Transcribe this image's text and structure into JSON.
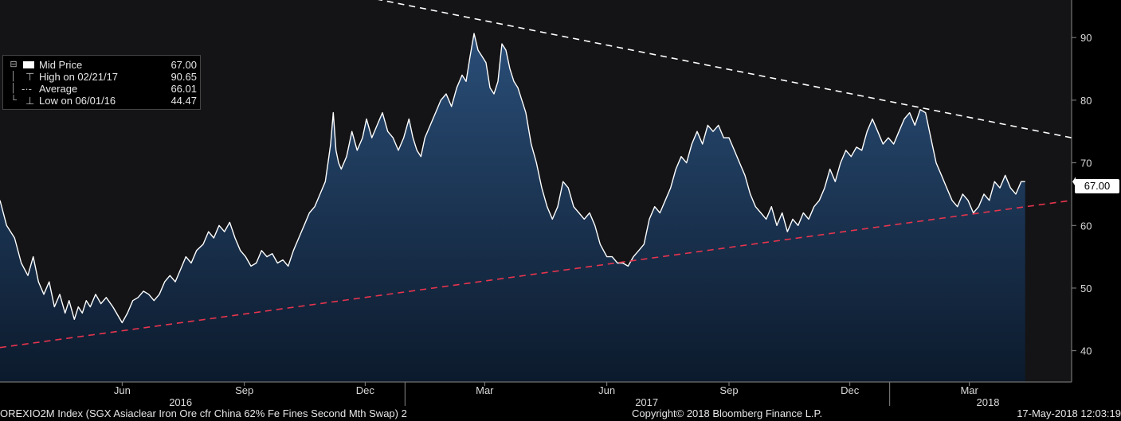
{
  "chart_data": {
    "type": "area",
    "title": "OREXIO2M Index (SGX Asiaclear Iron Ore cfr China 62% Fe Fines Second Mth Swap) 2",
    "x_range": [
      "2016-03-01",
      "2018-05-17"
    ],
    "ylim": [
      35,
      96
    ],
    "y_ticks": [
      40,
      50,
      60,
      70,
      80,
      90
    ],
    "x_tick_labels": [
      {
        "label": "Jun",
        "date": "2016-06-01"
      },
      {
        "label": "Sep",
        "date": "2016-09-01"
      },
      {
        "label": "Dec",
        "date": "2016-12-01"
      },
      {
        "label": "Mar",
        "date": "2017-03-01"
      },
      {
        "label": "Jun",
        "date": "2017-06-01"
      },
      {
        "label": "Sep",
        "date": "2017-09-01"
      },
      {
        "label": "Dec",
        "date": "2017-12-01"
      },
      {
        "label": "Mar",
        "date": "2018-03-01"
      }
    ],
    "year_labels": [
      {
        "label": "2016",
        "date": "2016-07-15"
      },
      {
        "label": "2017",
        "date": "2017-07-01"
      },
      {
        "label": "2018",
        "date": "2018-03-15"
      }
    ],
    "year_dividers": [
      "2016-12-31",
      "2017-12-31"
    ],
    "series": [
      {
        "name": "Mid Price",
        "color": "#ffffff",
        "fill": "#1c3a5e",
        "points": [
          [
            "2016-03-01",
            64
          ],
          [
            "2016-03-06",
            60
          ],
          [
            "2016-03-12",
            58
          ],
          [
            "2016-03-17",
            54
          ],
          [
            "2016-03-22",
            52
          ],
          [
            "2016-03-26",
            55
          ],
          [
            "2016-03-30",
            51
          ],
          [
            "2016-04-03",
            49
          ],
          [
            "2016-04-07",
            51
          ],
          [
            "2016-04-11",
            47
          ],
          [
            "2016-04-15",
            49
          ],
          [
            "2016-04-19",
            46
          ],
          [
            "2016-04-22",
            48
          ],
          [
            "2016-04-26",
            45
          ],
          [
            "2016-04-29",
            47
          ],
          [
            "2016-05-02",
            46
          ],
          [
            "2016-05-05",
            48
          ],
          [
            "2016-05-08",
            47
          ],
          [
            "2016-05-12",
            49
          ],
          [
            "2016-05-16",
            47.5
          ],
          [
            "2016-05-20",
            48.5
          ],
          [
            "2016-05-25",
            47
          ],
          [
            "2016-06-01",
            44.47
          ],
          [
            "2016-06-05",
            46
          ],
          [
            "2016-06-09",
            48
          ],
          [
            "2016-06-13",
            48.5
          ],
          [
            "2016-06-17",
            49.5
          ],
          [
            "2016-06-21",
            49
          ],
          [
            "2016-06-25",
            48
          ],
          [
            "2016-06-29",
            49
          ],
          [
            "2016-07-03",
            51
          ],
          [
            "2016-07-07",
            52
          ],
          [
            "2016-07-11",
            51
          ],
          [
            "2016-07-15",
            53
          ],
          [
            "2016-07-19",
            55
          ],
          [
            "2016-07-23",
            54
          ],
          [
            "2016-07-27",
            56
          ],
          [
            "2016-08-01",
            57
          ],
          [
            "2016-08-05",
            59
          ],
          [
            "2016-08-09",
            58
          ],
          [
            "2016-08-13",
            60
          ],
          [
            "2016-08-17",
            59
          ],
          [
            "2016-08-21",
            60.5
          ],
          [
            "2016-08-25",
            58
          ],
          [
            "2016-08-29",
            56
          ],
          [
            "2016-09-02",
            55
          ],
          [
            "2016-09-06",
            53.5
          ],
          [
            "2016-09-10",
            54
          ],
          [
            "2016-09-14",
            56
          ],
          [
            "2016-09-18",
            55
          ],
          [
            "2016-09-22",
            55.5
          ],
          [
            "2016-09-26",
            54
          ],
          [
            "2016-09-30",
            54.5
          ],
          [
            "2016-10-04",
            53.5
          ],
          [
            "2016-10-08",
            56
          ],
          [
            "2016-10-12",
            58
          ],
          [
            "2016-10-16",
            60
          ],
          [
            "2016-10-20",
            62
          ],
          [
            "2016-10-24",
            63
          ],
          [
            "2016-10-28",
            65
          ],
          [
            "2016-11-01",
            67
          ],
          [
            "2016-11-03",
            70
          ],
          [
            "2016-11-05",
            73
          ],
          [
            "2016-11-07",
            78
          ],
          [
            "2016-11-09",
            72
          ],
          [
            "2016-11-11",
            70
          ],
          [
            "2016-11-13",
            69
          ],
          [
            "2016-11-17",
            71
          ],
          [
            "2016-11-21",
            75
          ],
          [
            "2016-11-25",
            72
          ],
          [
            "2016-11-29",
            74
          ],
          [
            "2016-12-02",
            77
          ],
          [
            "2016-12-06",
            74
          ],
          [
            "2016-12-10",
            76
          ],
          [
            "2016-12-14",
            78
          ],
          [
            "2016-12-18",
            75
          ],
          [
            "2016-12-22",
            74
          ],
          [
            "2016-12-26",
            72
          ],
          [
            "2016-12-30",
            74
          ],
          [
            "2017-01-03",
            77
          ],
          [
            "2017-01-06",
            74
          ],
          [
            "2017-01-09",
            72
          ],
          [
            "2017-01-12",
            71
          ],
          [
            "2017-01-15",
            74
          ],
          [
            "2017-01-19",
            76
          ],
          [
            "2017-01-23",
            78
          ],
          [
            "2017-01-27",
            80
          ],
          [
            "2017-01-31",
            81
          ],
          [
            "2017-02-04",
            79
          ],
          [
            "2017-02-08",
            82
          ],
          [
            "2017-02-12",
            84
          ],
          [
            "2017-02-15",
            83
          ],
          [
            "2017-02-18",
            87
          ],
          [
            "2017-02-21",
            90.65
          ],
          [
            "2017-02-24",
            88
          ],
          [
            "2017-02-27",
            87
          ],
          [
            "2017-03-02",
            86
          ],
          [
            "2017-03-05",
            82
          ],
          [
            "2017-03-08",
            81
          ],
          [
            "2017-03-11",
            83
          ],
          [
            "2017-03-14",
            89
          ],
          [
            "2017-03-17",
            88
          ],
          [
            "2017-03-20",
            85
          ],
          [
            "2017-03-23",
            83
          ],
          [
            "2017-03-26",
            82
          ],
          [
            "2017-03-29",
            80
          ],
          [
            "2017-04-01",
            78
          ],
          [
            "2017-04-05",
            73
          ],
          [
            "2017-04-09",
            70
          ],
          [
            "2017-04-13",
            66
          ],
          [
            "2017-04-17",
            63
          ],
          [
            "2017-04-21",
            61
          ],
          [
            "2017-04-25",
            63
          ],
          [
            "2017-04-29",
            67
          ],
          [
            "2017-05-03",
            66
          ],
          [
            "2017-05-07",
            63
          ],
          [
            "2017-05-11",
            62
          ],
          [
            "2017-05-15",
            61
          ],
          [
            "2017-05-19",
            62
          ],
          [
            "2017-05-23",
            60
          ],
          [
            "2017-05-27",
            57
          ],
          [
            "2017-06-01",
            55
          ],
          [
            "2017-06-05",
            55
          ],
          [
            "2017-06-09",
            54
          ],
          [
            "2017-06-13",
            54
          ],
          [
            "2017-06-17",
            53.5
          ],
          [
            "2017-06-21",
            55
          ],
          [
            "2017-06-25",
            56
          ],
          [
            "2017-06-29",
            57
          ],
          [
            "2017-07-03",
            61
          ],
          [
            "2017-07-07",
            63
          ],
          [
            "2017-07-11",
            62
          ],
          [
            "2017-07-15",
            64
          ],
          [
            "2017-07-19",
            66
          ],
          [
            "2017-07-23",
            69
          ],
          [
            "2017-07-27",
            71
          ],
          [
            "2017-07-31",
            70
          ],
          [
            "2017-08-04",
            73
          ],
          [
            "2017-08-08",
            75
          ],
          [
            "2017-08-12",
            73
          ],
          [
            "2017-08-16",
            76
          ],
          [
            "2017-08-20",
            75
          ],
          [
            "2017-08-24",
            76
          ],
          [
            "2017-08-28",
            74
          ],
          [
            "2017-09-01",
            74
          ],
          [
            "2017-09-05",
            72
          ],
          [
            "2017-09-09",
            70
          ],
          [
            "2017-09-13",
            68
          ],
          [
            "2017-09-17",
            65
          ],
          [
            "2017-09-21",
            63
          ],
          [
            "2017-09-25",
            62
          ],
          [
            "2017-09-29",
            61
          ],
          [
            "2017-10-03",
            63
          ],
          [
            "2017-10-07",
            60
          ],
          [
            "2017-10-11",
            62
          ],
          [
            "2017-10-15",
            59
          ],
          [
            "2017-10-19",
            61
          ],
          [
            "2017-10-23",
            60
          ],
          [
            "2017-10-27",
            62
          ],
          [
            "2017-10-31",
            61
          ],
          [
            "2017-11-04",
            63
          ],
          [
            "2017-11-08",
            64
          ],
          [
            "2017-11-12",
            66
          ],
          [
            "2017-11-16",
            69
          ],
          [
            "2017-11-20",
            67
          ],
          [
            "2017-11-24",
            70
          ],
          [
            "2017-11-28",
            72
          ],
          [
            "2017-12-02",
            71
          ],
          [
            "2017-12-06",
            72.5
          ],
          [
            "2017-12-10",
            72
          ],
          [
            "2017-12-14",
            75
          ],
          [
            "2017-12-18",
            77
          ],
          [
            "2017-12-22",
            75
          ],
          [
            "2017-12-26",
            73
          ],
          [
            "2017-12-30",
            74
          ],
          [
            "2018-01-03",
            73
          ],
          [
            "2018-01-07",
            75
          ],
          [
            "2018-01-11",
            77
          ],
          [
            "2018-01-15",
            78
          ],
          [
            "2018-01-19",
            76
          ],
          [
            "2018-01-23",
            78.5
          ],
          [
            "2018-01-27",
            78
          ],
          [
            "2018-01-31",
            74
          ],
          [
            "2018-02-04",
            70
          ],
          [
            "2018-02-08",
            68
          ],
          [
            "2018-02-12",
            66
          ],
          [
            "2018-02-16",
            64
          ],
          [
            "2018-02-20",
            63
          ],
          [
            "2018-02-24",
            65
          ],
          [
            "2018-02-28",
            64
          ],
          [
            "2018-03-04",
            62
          ],
          [
            "2018-03-08",
            63
          ],
          [
            "2018-03-12",
            65
          ],
          [
            "2018-03-16",
            64
          ],
          [
            "2018-03-20",
            67
          ],
          [
            "2018-03-24",
            66
          ],
          [
            "2018-03-28",
            68
          ],
          [
            "2018-04-01",
            66
          ],
          [
            "2018-04-05",
            65
          ],
          [
            "2018-04-09",
            67
          ],
          [
            "2018-04-12",
            67
          ]
        ]
      }
    ],
    "trendlines": [
      {
        "color": "#ffffff",
        "style": "dashed",
        "from": [
          "2016-12-01",
          96.5
        ],
        "to": [
          "2018-05-17",
          74
        ]
      },
      {
        "color": "#e8344e",
        "style": "dashed",
        "from": [
          "2016-03-01",
          40.5
        ],
        "to": [
          "2018-05-17",
          64
        ]
      }
    ],
    "last_value_label": "67.00",
    "legend": {
      "position": "top-left",
      "items": [
        {
          "symbol": "box",
          "label": "Mid Price",
          "value": "67.00"
        },
        {
          "symbol": "high",
          "label": "High on 02/21/17",
          "value": "90.65"
        },
        {
          "symbol": "avg",
          "label": "Average",
          "value": "66.01"
        },
        {
          "symbol": "low",
          "label": "Low on 06/01/16",
          "value": "44.47"
        }
      ]
    },
    "grid": false
  },
  "footer": {
    "left": "OREXIO2M Index (SGX Asiaclear Iron Ore cfr China 62% Fe Fines Second Mth Swap) 2",
    "center": "Copyright© 2018 Bloomberg Finance L.P.",
    "right": "17-May-2018 12:03:19"
  }
}
